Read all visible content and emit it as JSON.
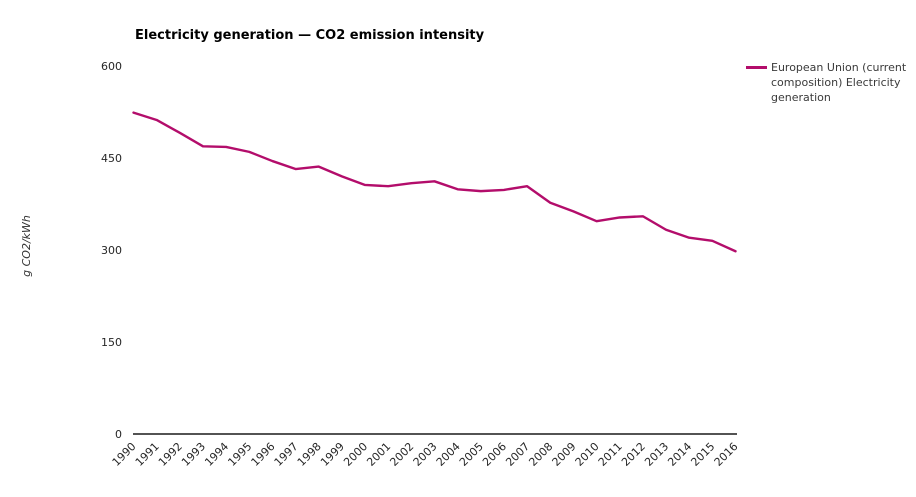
{
  "chart": {
    "title": "Electricity generation — CO2 emission intensity"
  },
  "legend": {
    "label": "European Union (current\ncomposition) Electricity\ngeneration"
  },
  "chart_data": {
    "type": "line",
    "title": "Electricity generation — CO2 emission intensity",
    "xlabel": "",
    "ylabel": "g CO2/kWh",
    "ylim": [
      0,
      600
    ],
    "yticks": [
      0,
      150,
      300,
      450,
      600
    ],
    "grid": false,
    "legend_position": "right",
    "categories": [
      1990,
      1991,
      1992,
      1993,
      1994,
      1995,
      1996,
      1997,
      1998,
      1999,
      2000,
      2001,
      2002,
      2003,
      2004,
      2005,
      2006,
      2007,
      2008,
      2009,
      2010,
      2011,
      2012,
      2013,
      2014,
      2015,
      2016
    ],
    "series": [
      {
        "name": "European Union (current composition) Electricity generation",
        "color": "#b30d6b",
        "values": [
          524,
          512,
          491,
          469,
          468,
          460,
          445,
          432,
          436,
          420,
          406,
          404,
          409,
          412,
          399,
          396,
          398,
          404,
          377,
          363,
          347,
          353,
          355,
          333,
          320,
          315,
          298
        ]
      }
    ],
    "theme": {
      "axis_color": "#1a1a1a",
      "tick_label_color": "#262626",
      "background": "#ffffff"
    }
  }
}
